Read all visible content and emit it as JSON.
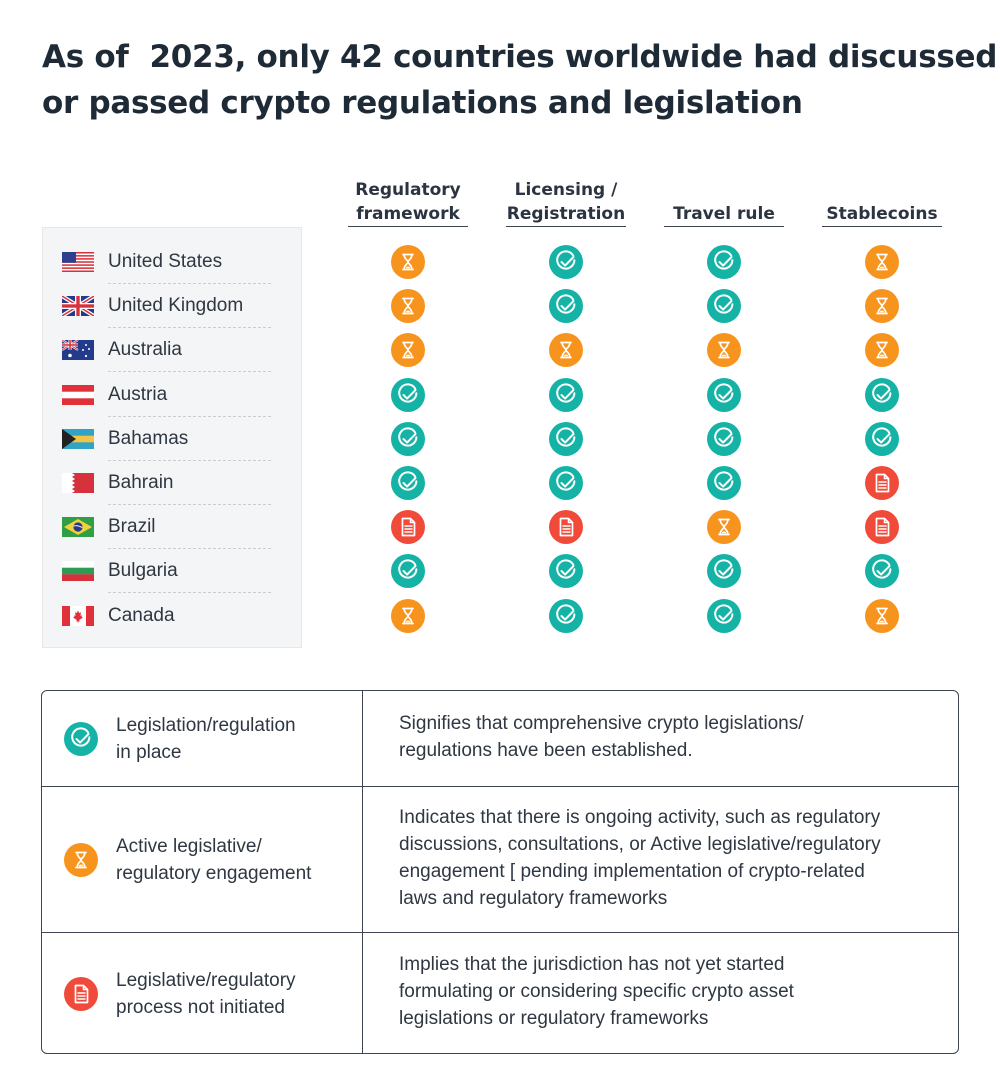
{
  "title": {
    "line1": "As of  2023, only 42 countries worldwide had discussed",
    "line2": "or passed crypto regulations and legislation"
  },
  "columns": [
    {
      "line1": "Regulatory",
      "line2": "framework"
    },
    {
      "line1": "Licensing /",
      "line2": "Registration"
    },
    {
      "line1": "",
      "line2": "Travel rule"
    },
    {
      "line1": "",
      "line2": "Stablecoins"
    }
  ],
  "colors": {
    "in_place": "#14b3a5",
    "active": "#f7941d",
    "not_initiated": "#ef4a3a"
  },
  "icons": {
    "in_place": "check-circle-icon",
    "active": "hourglass-icon",
    "not_initiated": "document-icon"
  },
  "countries": [
    {
      "name": "United States",
      "flag": "us-flag-icon",
      "statuses": [
        "active",
        "in_place",
        "in_place",
        "active"
      ]
    },
    {
      "name": "United Kingdom",
      "flag": "uk-flag-icon",
      "statuses": [
        "active",
        "in_place",
        "in_place",
        "active"
      ]
    },
    {
      "name": "Australia",
      "flag": "australia-flag-icon",
      "statuses": [
        "active",
        "active",
        "active",
        "active"
      ]
    },
    {
      "name": "Austria",
      "flag": "austria-flag-icon",
      "statuses": [
        "in_place",
        "in_place",
        "in_place",
        "in_place"
      ]
    },
    {
      "name": "Bahamas",
      "flag": "bahamas-flag-icon",
      "statuses": [
        "in_place",
        "in_place",
        "in_place",
        "in_place"
      ]
    },
    {
      "name": "Bahrain",
      "flag": "bahrain-flag-icon",
      "statuses": [
        "in_place",
        "in_place",
        "in_place",
        "not_initiated"
      ]
    },
    {
      "name": "Brazil",
      "flag": "brazil-flag-icon",
      "statuses": [
        "not_initiated",
        "not_initiated",
        "active",
        "not_initiated"
      ]
    },
    {
      "name": "Bulgaria",
      "flag": "bulgaria-flag-icon",
      "statuses": [
        "in_place",
        "in_place",
        "in_place",
        "in_place"
      ]
    },
    {
      "name": "Canada",
      "flag": "canada-flag-icon",
      "statuses": [
        "active",
        "in_place",
        "in_place",
        "active"
      ]
    }
  ],
  "legend": [
    {
      "status": "in_place",
      "label": [
        "Legislation/regulation",
        "in place"
      ],
      "description": [
        "Signifies that comprehensive crypto legislations/",
        "regulations have been established."
      ]
    },
    {
      "status": "active",
      "label": [
        "Active legislative/",
        "regulatory engagement"
      ],
      "description": [
        "Indicates that there is ongoing activity, such as regulatory",
        "discussions, consultations, or Active legislative/regulatory",
        "engagement [ pending implementation of crypto-related",
        "laws and regulatory frameworks"
      ]
    },
    {
      "status": "not_initiated",
      "label": [
        "Legislative/regulatory",
        "process not initiated"
      ],
      "description": [
        "Implies that the jurisdiction has not yet started",
        "formulating or considering specific crypto asset",
        "legislations or regulatory frameworks"
      ]
    }
  ]
}
